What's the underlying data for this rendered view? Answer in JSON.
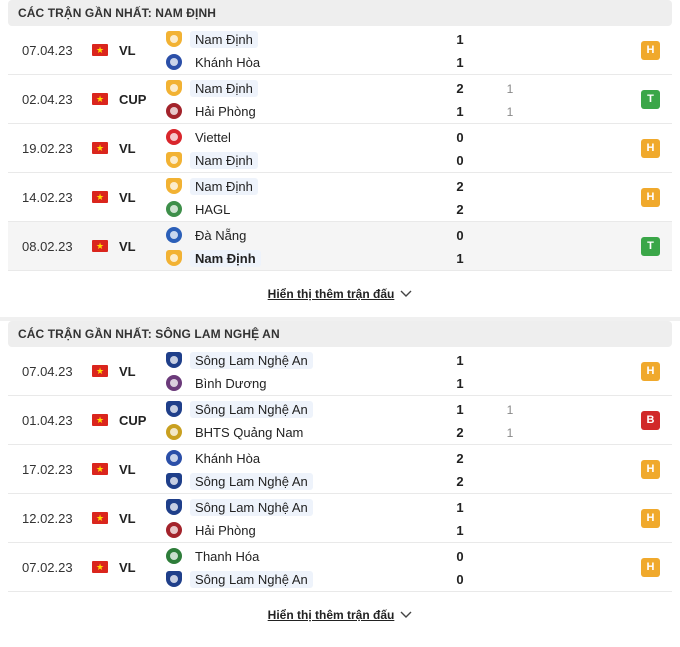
{
  "sections": [
    {
      "title": "CÁC TRẬN GẦN NHẤT: NAM ĐỊNH",
      "more_label": "Hiển thị thêm trận đấu",
      "matches": [
        {
          "date": "07.04.23",
          "comp": "VL",
          "home": "Nam Định",
          "away": "Khánh Hòa",
          "home_score": "1",
          "away_score": "1",
          "home_sub": "",
          "away_sub": "",
          "result": "H",
          "highlight": "home",
          "bold": "",
          "home_color": "#f2b233",
          "away_color": "#2b4fa8"
        },
        {
          "date": "02.04.23",
          "comp": "CUP",
          "home": "Nam Định",
          "away": "Hải Phòng",
          "home_score": "2",
          "away_score": "1",
          "home_sub": "1",
          "away_sub": "1",
          "result": "T",
          "highlight": "home",
          "bold": "",
          "home_color": "#f2b233",
          "away_color": "#a3232b"
        },
        {
          "date": "19.02.23",
          "comp": "VL",
          "home": "Viettel",
          "away": "Nam Định",
          "home_score": "0",
          "away_score": "0",
          "home_sub": "",
          "away_sub": "",
          "result": "H",
          "highlight": "away",
          "bold": "",
          "home_color": "#d9262c",
          "away_color": "#f2b233"
        },
        {
          "date": "14.02.23",
          "comp": "VL",
          "home": "Nam Định",
          "away": "HAGL",
          "home_score": "2",
          "away_score": "2",
          "home_sub": "",
          "away_sub": "",
          "result": "H",
          "highlight": "home",
          "bold": "",
          "home_color": "#f2b233",
          "away_color": "#3e8f4a"
        },
        {
          "date": "08.02.23",
          "comp": "VL",
          "home": "Đà Nẵng",
          "away": "Nam Định",
          "home_score": "0",
          "away_score": "1",
          "home_sub": "",
          "away_sub": "",
          "result": "T",
          "highlight": "away",
          "bold": "away",
          "home_color": "#2b5fb8",
          "away_color": "#f2b233"
        }
      ]
    },
    {
      "title": "CÁC TRẬN GẦN NHẤT: SÔNG LAM NGHỆ AN",
      "more_label": "Hiển thị thêm trận đấu",
      "matches": [
        {
          "date": "07.04.23",
          "comp": "VL",
          "home": "Sông Lam Nghệ An",
          "away": "Bình Dương",
          "home_score": "1",
          "away_score": "1",
          "home_sub": "",
          "away_sub": "",
          "result": "H",
          "highlight": "home",
          "bold": "",
          "home_color": "#1f3f8a",
          "away_color": "#6b3a7a"
        },
        {
          "date": "01.04.23",
          "comp": "CUP",
          "home": "Sông Lam Nghệ An",
          "away": "BHTS Quảng Nam",
          "home_score": "1",
          "away_score": "2",
          "home_sub": "1",
          "away_sub": "1",
          "result": "B",
          "highlight": "home",
          "bold": "",
          "home_color": "#1f3f8a",
          "away_color": "#c9a020"
        },
        {
          "date": "17.02.23",
          "comp": "VL",
          "home": "Khánh Hòa",
          "away": "Sông Lam Nghệ An",
          "home_score": "2",
          "away_score": "2",
          "home_sub": "",
          "away_sub": "",
          "result": "H",
          "highlight": "away",
          "bold": "",
          "home_color": "#2b4fa8",
          "away_color": "#1f3f8a"
        },
        {
          "date": "12.02.23",
          "comp": "VL",
          "home": "Sông Lam Nghệ An",
          "away": "Hải Phòng",
          "home_score": "1",
          "away_score": "1",
          "home_sub": "",
          "away_sub": "",
          "result": "H",
          "highlight": "home",
          "bold": "",
          "home_color": "#1f3f8a",
          "away_color": "#a3232b"
        },
        {
          "date": "07.02.23",
          "comp": "VL",
          "home": "Thanh Hóa",
          "away": "Sông Lam Nghệ An",
          "home_score": "0",
          "away_score": "0",
          "home_sub": "",
          "away_sub": "",
          "result": "H",
          "highlight": "away",
          "bold": "",
          "home_color": "#2e7d3a",
          "away_color": "#1f3f8a"
        }
      ]
    }
  ]
}
